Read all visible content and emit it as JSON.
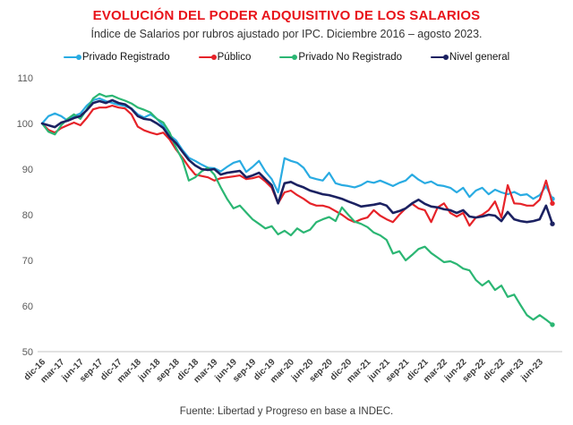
{
  "header": {
    "title": "EVOLUCIÓN DEL PODER ADQUISITIVO DE LOS SALARIOS",
    "subtitle": "Índice de Salarios por rubros ajustado por IPC. Diciembre 2016 – agosto 2023.",
    "title_color": "#e8131a"
  },
  "footer": {
    "source": "Fuente: Libertad y Progreso en base a INDEC."
  },
  "chart_data": {
    "type": "line",
    "title": "EVOLUCIÓN DEL PODER ADQUISITIVO DE LOS SALARIOS",
    "subtitle": "Índice de Salarios por rubros ajustado por IPC. Diciembre 2016 – agosto 2023.",
    "x_start": "dic-16",
    "x_end": "ago-23",
    "points_per_series": 81,
    "x_tick_labels": [
      "dic-16",
      "mar-17",
      "jun-17",
      "sep-17",
      "dic-17",
      "mar-18",
      "jun-18",
      "sep-18",
      "dic-18",
      "mar-19",
      "jun-19",
      "sep-19",
      "dic-19",
      "mar-20",
      "jun-20",
      "sep-20",
      "dic-20",
      "mar-21",
      "jun-21",
      "sep-21",
      "dic-21",
      "mar-22",
      "jun-22",
      "sep-22",
      "dic-22",
      "mar-23",
      "jun-23"
    ],
    "x_tick_every_months": 3,
    "ylim": [
      50,
      110
    ],
    "y_ticks": [
      110,
      100,
      90,
      80,
      70,
      60,
      50
    ],
    "grid": false,
    "legend_position": "top",
    "end_point_markers": true,
    "series": [
      {
        "name": "Privado Registrado",
        "color": "#29abe2",
        "values": [
          100,
          101.6,
          102.2,
          101.6,
          100.6,
          101.6,
          102.2,
          103.9,
          105.1,
          105.5,
          104.9,
          104.5,
          104.1,
          103.8,
          103.3,
          102,
          101.3,
          102,
          101,
          99.5,
          97.5,
          96.3,
          94.2,
          92.5,
          91.8,
          91,
          90.3,
          90.2,
          89.5,
          90.5,
          91.4,
          91.8,
          89.4,
          90.5,
          91.8,
          89.5,
          87.8,
          84.9,
          92.4,
          91.8,
          91.4,
          90.3,
          88.2,
          87.8,
          87.5,
          89.2,
          86.9,
          86.5,
          86.3,
          86,
          86.5,
          87.3,
          87,
          87.5,
          86.9,
          86.3,
          87,
          87.5,
          88.8,
          87.7,
          86.9,
          87.3,
          86.5,
          86.3,
          85.9,
          84.9,
          85.9,
          83.9,
          85.3,
          85.9,
          84.5,
          85.5,
          84.9,
          84.5,
          85,
          84.3,
          84.5,
          83.5,
          84.3,
          86.3,
          83.5
        ]
      },
      {
        "name": "Público",
        "color": "#e62329",
        "values": [
          100,
          98.6,
          98,
          99,
          99.6,
          100.2,
          99.6,
          101.2,
          103.1,
          103.5,
          103.5,
          103.9,
          103.5,
          103.3,
          102,
          99.3,
          98.5,
          98,
          97.6,
          98,
          96.5,
          94.3,
          92.5,
          90.5,
          88.8,
          88.5,
          88.2,
          87.5,
          88,
          88.2,
          88.4,
          88.6,
          87.8,
          88,
          88.4,
          87.3,
          85.9,
          82.5,
          84.9,
          85.3,
          84.3,
          83.5,
          82.5,
          82,
          82,
          81.6,
          80.8,
          80,
          79,
          78.4,
          79,
          79.4,
          81,
          79.8,
          79,
          78.4,
          80,
          81.4,
          82.4,
          81.4,
          81,
          78.4,
          81.6,
          82.5,
          80.4,
          79.6,
          80.4,
          77.6,
          79.4,
          80,
          81,
          82.9,
          79.4,
          86.5,
          82.5,
          82.4,
          82,
          82,
          83.3,
          87.5,
          82.5
        ]
      },
      {
        "name": "Privado No Registrado",
        "color": "#2bb673",
        "values": [
          100,
          98.2,
          97.6,
          99.6,
          101,
          102,
          101,
          103.1,
          105.5,
          106.5,
          105.9,
          106.1,
          105.5,
          105,
          104.4,
          103.5,
          103,
          102.4,
          101,
          100.2,
          98,
          94.7,
          92,
          87.5,
          88.2,
          89.5,
          90.3,
          88.8,
          86,
          83.5,
          81.4,
          82,
          80.5,
          79,
          78,
          77,
          77.5,
          75.7,
          76.5,
          75.5,
          77,
          76.1,
          76.7,
          78.4,
          79,
          79.5,
          78.6,
          81.6,
          80,
          78.5,
          78,
          77.3,
          76.1,
          75.5,
          74.5,
          71.5,
          72,
          70,
          71.2,
          72.5,
          73,
          71.6,
          70.6,
          69.6,
          69.8,
          69.2,
          68.2,
          67.8,
          65.7,
          64.5,
          65.5,
          63.5,
          64.5,
          62,
          62.5,
          60.2,
          58,
          57,
          58,
          57,
          55.9
        ]
      },
      {
        "name": "Nivel general",
        "color": "#1b2161",
        "values": [
          100,
          99.6,
          99.2,
          100.2,
          100.6,
          101.2,
          101.6,
          102.9,
          104.5,
          104.9,
          104.5,
          105.1,
          104.5,
          104.2,
          103.2,
          101.6,
          101,
          100.8,
          100,
          99,
          97,
          95.7,
          93.8,
          92,
          90.8,
          90,
          89.8,
          90,
          88.8,
          89.2,
          89.4,
          89.6,
          88.2,
          88.6,
          89.2,
          87.8,
          86.5,
          82.5,
          86.9,
          87.2,
          86.5,
          86,
          85.3,
          84.9,
          84.5,
          84.3,
          83.9,
          83.5,
          82.9,
          82.4,
          81.8,
          82,
          82.2,
          82.5,
          82,
          80.4,
          80.8,
          81.4,
          82.5,
          83.3,
          82.4,
          81.8,
          81.6,
          81.2,
          81,
          80.4,
          81,
          79.6,
          79.4,
          79.6,
          80,
          79.8,
          78.6,
          80.6,
          79,
          78.6,
          78.4,
          78.6,
          79,
          82,
          78
        ]
      }
    ]
  }
}
